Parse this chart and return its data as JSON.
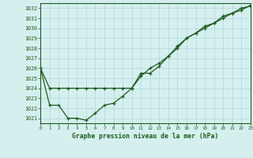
{
  "x": [
    0,
    1,
    2,
    3,
    4,
    5,
    6,
    7,
    8,
    9,
    10,
    11,
    12,
    13,
    14,
    15,
    16,
    17,
    18,
    19,
    20,
    21,
    22,
    23
  ],
  "line1": [
    1026,
    1024,
    1024,
    1024,
    1024,
    1024,
    1024,
    1024,
    1024,
    1024,
    1024,
    1025.2,
    1026,
    1026.5,
    1027.2,
    1028.0,
    1029.0,
    1029.5,
    1030.0,
    1030.5,
    1031.0,
    1031.5,
    1032.0,
    1032.2
  ],
  "line2": [
    1026,
    1022.3,
    1022.3,
    1021.0,
    1021.0,
    1020.8,
    1021.5,
    1022.3,
    1022.5,
    1023.2,
    1024.0,
    1025.5,
    1025.5,
    1026.2,
    1027.2,
    1028.2,
    1029.0,
    1029.5,
    1030.2,
    1030.5,
    1031.2,
    1031.5,
    1031.8,
    1032.3
  ],
  "ylim": [
    1020.5,
    1032.5
  ],
  "xlim": [
    0,
    23
  ],
  "yticks": [
    1021,
    1022,
    1023,
    1024,
    1025,
    1026,
    1027,
    1028,
    1029,
    1030,
    1031,
    1032
  ],
  "xticks": [
    0,
    1,
    2,
    3,
    4,
    5,
    6,
    7,
    8,
    9,
    10,
    11,
    12,
    13,
    14,
    15,
    16,
    17,
    18,
    19,
    20,
    21,
    22,
    23
  ],
  "line_color": "#1f5c1f",
  "bg_color": "#d5efef",
  "grid_color": "#b0d8d8",
  "xlabel": "Graphe pression niveau de la mer (hPa)",
  "xlabel_color": "#1a5c1a",
  "tick_color": "#1a5c1a",
  "marker": "+",
  "figsize": [
    3.2,
    2.0
  ],
  "dpi": 100
}
